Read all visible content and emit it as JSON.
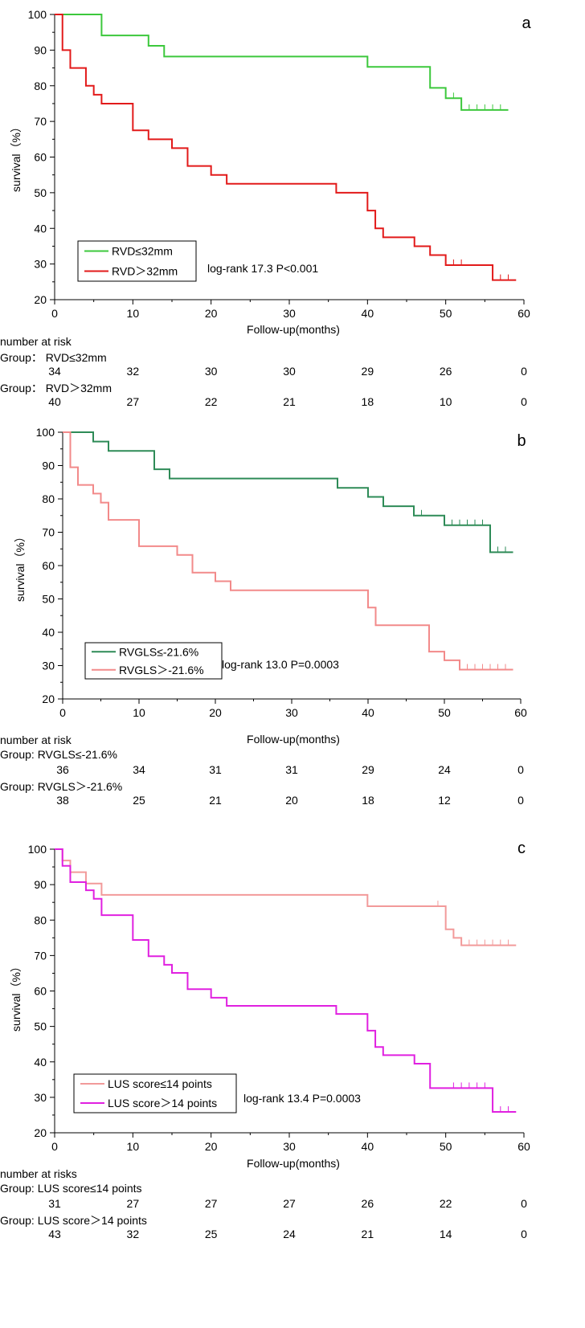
{
  "chart_data": [
    {
      "type": "line",
      "panel_label": "a",
      "xlabel": "Follow-up(months)",
      "ylabel": "survival（%）",
      "xlim": [
        0,
        60
      ],
      "ylim": [
        20,
        100
      ],
      "xticks": [
        0,
        10,
        20,
        30,
        40,
        50,
        60
      ],
      "yticks": [
        20,
        30,
        40,
        50,
        60,
        70,
        80,
        90,
        100
      ],
      "legend_position": "bottom-left",
      "annotation": "log-rank 17.3 P<0.001",
      "series": [
        {
          "name": "RVD≤32mm",
          "color": "#3cc83c",
          "steps": [
            [
              0,
              100
            ],
            [
              6,
              94.1
            ],
            [
              12,
              91.2
            ],
            [
              14,
              88.2
            ],
            [
              40,
              85.3
            ],
            [
              48,
              79.4
            ],
            [
              50,
              76.5
            ],
            [
              52,
              73.2
            ],
            [
              58,
              73.2
            ]
          ],
          "censored": [
            51,
            53,
            54,
            55,
            56,
            57
          ]
        },
        {
          "name": "RVD＞32mm",
          "color": "#e21a1a",
          "steps": [
            [
              0,
              100
            ],
            [
              1,
              90
            ],
            [
              2,
              85
            ],
            [
              4,
              80
            ],
            [
              5,
              77.5
            ],
            [
              6,
              75
            ],
            [
              10,
              67.5
            ],
            [
              12,
              65
            ],
            [
              15,
              62.5
            ],
            [
              17,
              57.5
            ],
            [
              20,
              55
            ],
            [
              22,
              52.5
            ],
            [
              36,
              50
            ],
            [
              40,
              45
            ],
            [
              41,
              40
            ],
            [
              42,
              37.5
            ],
            [
              46,
              35
            ],
            [
              48,
              32.5
            ],
            [
              50,
              29.7
            ],
            [
              56,
              25.5
            ],
            [
              59,
              25.5
            ]
          ],
          "censored": [
            51,
            52,
            57,
            58
          ]
        }
      ],
      "risk_table": {
        "title": "number at risk",
        "groups": [
          {
            "label": "Group：  RVD≤32mm",
            "values": [
              "34",
              "32",
              "30",
              "30",
              "29",
              "26",
              "0"
            ]
          },
          {
            "label": "Group：  RVD＞32mm",
            "values": [
              "40",
              "27",
              "22",
              "21",
              "18",
              "10",
              "0"
            ]
          }
        ]
      }
    },
    {
      "type": "line",
      "panel_label": "b",
      "xlabel": "Follow-up(months)",
      "ylabel": "survival（%）",
      "xlim": [
        0,
        60
      ],
      "ylim": [
        20,
        100
      ],
      "xticks": [
        0,
        10,
        20,
        30,
        40,
        50,
        60
      ],
      "yticks": [
        20,
        30,
        40,
        50,
        60,
        70,
        80,
        90,
        100
      ],
      "legend_position": "bottom-left",
      "annotation": "log-rank 13.0 P=0.0003",
      "series": [
        {
          "name": "RVGLS≤-21.6%",
          "color": "#2e8b57",
          "steps": [
            [
              0,
              100
            ],
            [
              2,
              100
            ],
            [
              4,
              97.2
            ],
            [
              6,
              94.4
            ],
            [
              12,
              88.9
            ],
            [
              14,
              86.1
            ],
            [
              36,
              83.3
            ],
            [
              40,
              80.6
            ],
            [
              42,
              77.8
            ],
            [
              46,
              75
            ],
            [
              50,
              72.1
            ],
            [
              56,
              64
            ],
            [
              59,
              64
            ]
          ],
          "censored": [
            47,
            51,
            52,
            53,
            54,
            55,
            57,
            58
          ]
        },
        {
          "name": "RVGLS＞-21.6%",
          "color": "#f28a8a",
          "steps": [
            [
              0,
              100
            ],
            [
              1,
              89.5
            ],
            [
              2,
              84.2
            ],
            [
              4,
              81.6
            ],
            [
              5,
              78.9
            ],
            [
              6,
              73.7
            ],
            [
              10,
              65.8
            ],
            [
              15,
              63.2
            ],
            [
              17,
              57.9
            ],
            [
              20,
              55.3
            ],
            [
              22,
              52.6
            ],
            [
              40,
              47.4
            ],
            [
              41,
              42.1
            ],
            [
              48,
              34.2
            ],
            [
              50,
              31.6
            ],
            [
              52,
              28.8
            ],
            [
              59,
              28.8
            ]
          ],
          "censored": [
            53,
            54,
            55,
            56,
            57,
            58
          ]
        }
      ],
      "risk_table": {
        "title": "number at risk",
        "groups": [
          {
            "label": "Group: RVGLS≤-21.6%",
            "values": [
              "36",
              "34",
              "31",
              "31",
              "29",
              "24",
              "0"
            ]
          },
          {
            "label": "Group: RVGLS＞-21.6%",
            "values": [
              "38",
              "25",
              "21",
              "20",
              "18",
              "12",
              "0"
            ]
          }
        ]
      }
    },
    {
      "type": "line",
      "panel_label": "c",
      "xlabel": "Follow-up(months)",
      "ylabel": "survival（%）",
      "xlim": [
        0,
        60
      ],
      "ylim": [
        20,
        100
      ],
      "xticks": [
        0,
        10,
        20,
        30,
        40,
        50,
        60
      ],
      "yticks": [
        20,
        30,
        40,
        50,
        60,
        70,
        80,
        90,
        100
      ],
      "legend_position": "bottom-left",
      "annotation": "log-rank 13.4 P=0.0003",
      "series": [
        {
          "name": "LUS score≤14 points",
          "color": "#f29a9a",
          "steps": [
            [
              0,
              100
            ],
            [
              1,
              96.8
            ],
            [
              2,
              93.5
            ],
            [
              4,
              90.3
            ],
            [
              6,
              87.1
            ],
            [
              40,
              83.9
            ],
            [
              50,
              77.4
            ],
            [
              51,
              75
            ],
            [
              52,
              72.9
            ],
            [
              59,
              72.9
            ]
          ],
          "censored": [
            49,
            51,
            53,
            54,
            55,
            56,
            57,
            58
          ]
        },
        {
          "name": "LUS score＞14 points",
          "color": "#e020e0",
          "steps": [
            [
              0,
              100
            ],
            [
              1,
              95.3
            ],
            [
              2,
              90.7
            ],
            [
              4,
              88.4
            ],
            [
              5,
              86
            ],
            [
              6,
              81.4
            ],
            [
              10,
              74.4
            ],
            [
              12,
              69.8
            ],
            [
              14,
              67.4
            ],
            [
              15,
              65.1
            ],
            [
              17,
              60.5
            ],
            [
              20,
              58.1
            ],
            [
              22,
              55.8
            ],
            [
              36,
              53.5
            ],
            [
              40,
              48.8
            ],
            [
              41,
              44.2
            ],
            [
              42,
              41.9
            ],
            [
              46,
              39.5
            ],
            [
              48,
              32.6
            ],
            [
              56,
              25.9
            ],
            [
              59,
              25.9
            ]
          ],
          "censored": [
            51,
            52,
            53,
            54,
            55,
            57,
            58
          ]
        }
      ],
      "risk_table": {
        "title": "number at risks",
        "groups": [
          {
            "label": "Group: LUS score≤14 points",
            "values": [
              "31",
              "27",
              "27",
              "27",
              "26",
              "22",
              "0"
            ]
          },
          {
            "label": "Group: LUS score＞14 points",
            "values": [
              "43",
              "32",
              "25",
              "24",
              "21",
              "14",
              "0"
            ]
          }
        ]
      }
    }
  ]
}
